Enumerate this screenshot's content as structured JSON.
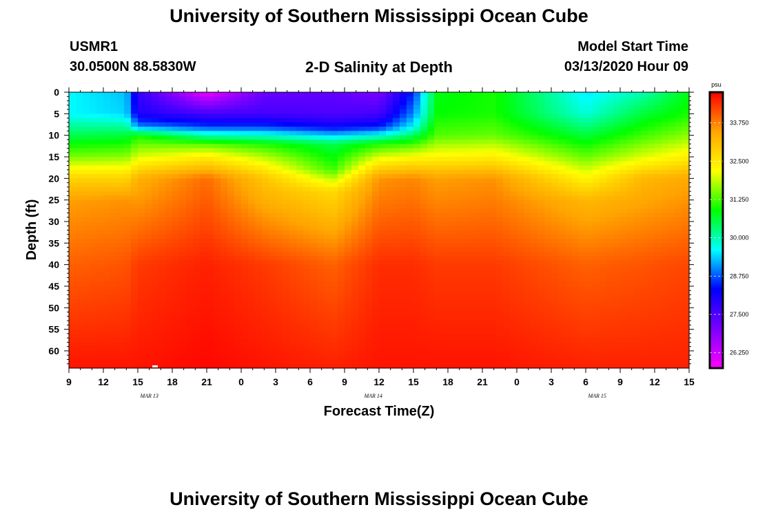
{
  "header": {
    "title": "University of Southern Mississippi Ocean Cube",
    "station_id": "USMR1",
    "coords": "30.0500N 88.5830W",
    "plot_title": "2-D Salinity at Depth",
    "model_start_label": "Model Start Time",
    "model_start_value": "03/13/2020 Hour 09"
  },
  "footer": {
    "title": "University of Southern Mississippi Ocean Cube"
  },
  "chart_data": {
    "type": "heatmap",
    "title": "2-D Salinity at Depth",
    "xlabel": "Forecast Time(Z)",
    "ylabel": "Depth (ft)",
    "x_range_hours": [
      0,
      54
    ],
    "x_ticks": [
      "9",
      "12",
      "15",
      "18",
      "21",
      "0",
      "3",
      "6",
      "9",
      "12",
      "15",
      "18",
      "21",
      "0",
      "3",
      "6",
      "9",
      "12",
      "15"
    ],
    "date_labels": [
      {
        "text": "MAR 13",
        "hour_offset": 7
      },
      {
        "text": "MAR 14",
        "hour_offset": 26.5
      },
      {
        "text": "MAR 15",
        "hour_offset": 46
      }
    ],
    "y_range_ft": [
      0,
      64
    ],
    "y_ticks": [
      "0",
      "5",
      "10",
      "15",
      "20",
      "25",
      "30",
      "35",
      "40",
      "45",
      "50",
      "55",
      "60"
    ],
    "colorbar": {
      "unit": "psu",
      "min": 25.75,
      "max": 34.75,
      "ticks": [
        "33.750",
        "32.500",
        "31.250",
        "30.000",
        "28.750",
        "27.500",
        "26.250"
      ],
      "tick_values": [
        33.75,
        32.5,
        31.25,
        30.0,
        28.75,
        27.5,
        26.25
      ],
      "colors": [
        "#ff00ff",
        "#7a00ff",
        "#0000ff",
        "#00ffff",
        "#00ff00",
        "#ffff00",
        "#ffa500",
        "#ff0000"
      ]
    },
    "salinity_profiles": [
      {
        "hour": 0,
        "depths": [
          0,
          5,
          10,
          15,
          20,
          25,
          40,
          64
        ],
        "values": [
          29.6,
          29.6,
          30.5,
          31.5,
          32.8,
          33.5,
          34.0,
          34.6
        ]
      },
      {
        "hour": 5,
        "depths": [
          0,
          5,
          10,
          15,
          20,
          25,
          40,
          64
        ],
        "values": [
          29.3,
          29.4,
          30.6,
          31.6,
          32.8,
          33.6,
          34.1,
          34.6
        ]
      },
      {
        "hour": 6,
        "depths": [
          0,
          5,
          8,
          10,
          15,
          20,
          40,
          64
        ],
        "values": [
          27.8,
          28.0,
          29.0,
          31.0,
          32.0,
          33.3,
          34.3,
          34.6
        ]
      },
      {
        "hour": 12,
        "depths": [
          0,
          5,
          8,
          12,
          15,
          20,
          40,
          64
        ],
        "values": [
          25.9,
          27.6,
          28.6,
          31.3,
          32.4,
          33.9,
          34.5,
          34.7
        ]
      },
      {
        "hour": 17,
        "depths": [
          0,
          5,
          8,
          12,
          15,
          20,
          40,
          64
        ],
        "values": [
          27.2,
          27.6,
          28.6,
          31.0,
          31.8,
          33.0,
          34.3,
          34.6
        ]
      },
      {
        "hour": 23,
        "depths": [
          0,
          5,
          8,
          12,
          18,
          23,
          40,
          64
        ],
        "values": [
          27.3,
          27.5,
          28.2,
          30.5,
          31.2,
          32.7,
          34.0,
          34.5
        ]
      },
      {
        "hour": 27,
        "depths": [
          0,
          5,
          8,
          12,
          15,
          20,
          40,
          64
        ],
        "values": [
          27.0,
          27.6,
          28.4,
          31.0,
          32.0,
          33.6,
          34.4,
          34.6
        ]
      },
      {
        "hour": 30,
        "depths": [
          0,
          5,
          8,
          12,
          15,
          20,
          40,
          64
        ],
        "values": [
          28.5,
          29.0,
          29.6,
          31.2,
          32.2,
          33.7,
          34.4,
          34.6
        ]
      },
      {
        "hour": 32,
        "depths": [
          0,
          5,
          10,
          15,
          20,
          40,
          64
        ],
        "values": [
          30.8,
          30.9,
          31.3,
          32.3,
          33.5,
          34.3,
          34.6
        ]
      },
      {
        "hour": 37,
        "depths": [
          0,
          5,
          10,
          15,
          20,
          40,
          64
        ],
        "values": [
          31.0,
          31.0,
          31.4,
          32.4,
          33.6,
          34.3,
          34.6
        ]
      },
      {
        "hour": 45,
        "depths": [
          0,
          5,
          10,
          15,
          20,
          25,
          40,
          64
        ],
        "values": [
          29.5,
          29.8,
          30.6,
          31.4,
          32.3,
          33.2,
          34.0,
          34.5
        ]
      },
      {
        "hour": 50,
        "depths": [
          0,
          5,
          10,
          15,
          20,
          40,
          64
        ],
        "values": [
          30.0,
          30.6,
          31.2,
          32.0,
          33.2,
          34.1,
          34.5
        ]
      },
      {
        "hour": 54,
        "depths": [
          0,
          5,
          10,
          15,
          20,
          40,
          64
        ],
        "values": [
          30.8,
          31.0,
          31.6,
          32.4,
          33.4,
          34.2,
          34.5
        ]
      }
    ]
  }
}
